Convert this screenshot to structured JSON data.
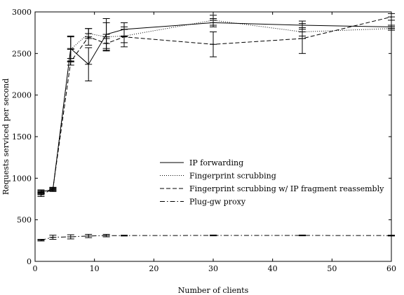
{
  "chart_data": {
    "type": "line",
    "xlabel": "Number of clients",
    "ylabel": "Requests serviced per second",
    "xlim": [
      0,
      60
    ],
    "ylim": [
      0,
      3000
    ],
    "xticks": [
      0,
      10,
      20,
      30,
      40,
      50,
      60
    ],
    "yticks": [
      0,
      500,
      1000,
      1500,
      2000,
      2500,
      3000
    ],
    "grid": false,
    "legend_position": "center-right",
    "series": [
      {
        "name": "IP forwarding",
        "dash": "solid",
        "x": [
          1,
          3,
          6,
          9,
          12,
          15,
          30,
          45,
          60
        ],
        "y": [
          840,
          860,
          2560,
          2370,
          2730,
          2790,
          2870,
          2840,
          2820
        ],
        "err": [
          20,
          20,
          150,
          200,
          190,
          80,
          50,
          50,
          20
        ]
      },
      {
        "name": "Fingerprint scrubbing",
        "dash": "dotted",
        "x": [
          1,
          3,
          6,
          9,
          12,
          15,
          30,
          45,
          60
        ],
        "y": [
          830,
          870,
          2550,
          2740,
          2700,
          2710,
          2900,
          2760,
          2800
        ],
        "err": [
          20,
          20,
          150,
          60,
          170,
          80,
          60,
          50,
          20
        ]
      },
      {
        "name": "Fingerprint scrubbing w/ IP fragment reassembly",
        "dash": "dashed",
        "x": [
          1,
          3,
          6,
          9,
          12,
          15,
          30,
          45,
          60
        ],
        "y": [
          800,
          870,
          2400,
          2700,
          2620,
          2700,
          2610,
          2680,
          2940
        ],
        "err": [
          20,
          20,
          40,
          100,
          60,
          120,
          150,
          180,
          40
        ]
      },
      {
        "name": "Plug-gw proxy",
        "dash": "dashdot",
        "x": [
          1,
          3,
          6,
          9,
          12,
          15,
          30,
          45,
          60
        ],
        "y": [
          255,
          290,
          295,
          305,
          310,
          310,
          312,
          312,
          310
        ],
        "err": [
          10,
          25,
          25,
          20,
          15,
          5,
          5,
          5,
          5
        ]
      }
    ]
  }
}
